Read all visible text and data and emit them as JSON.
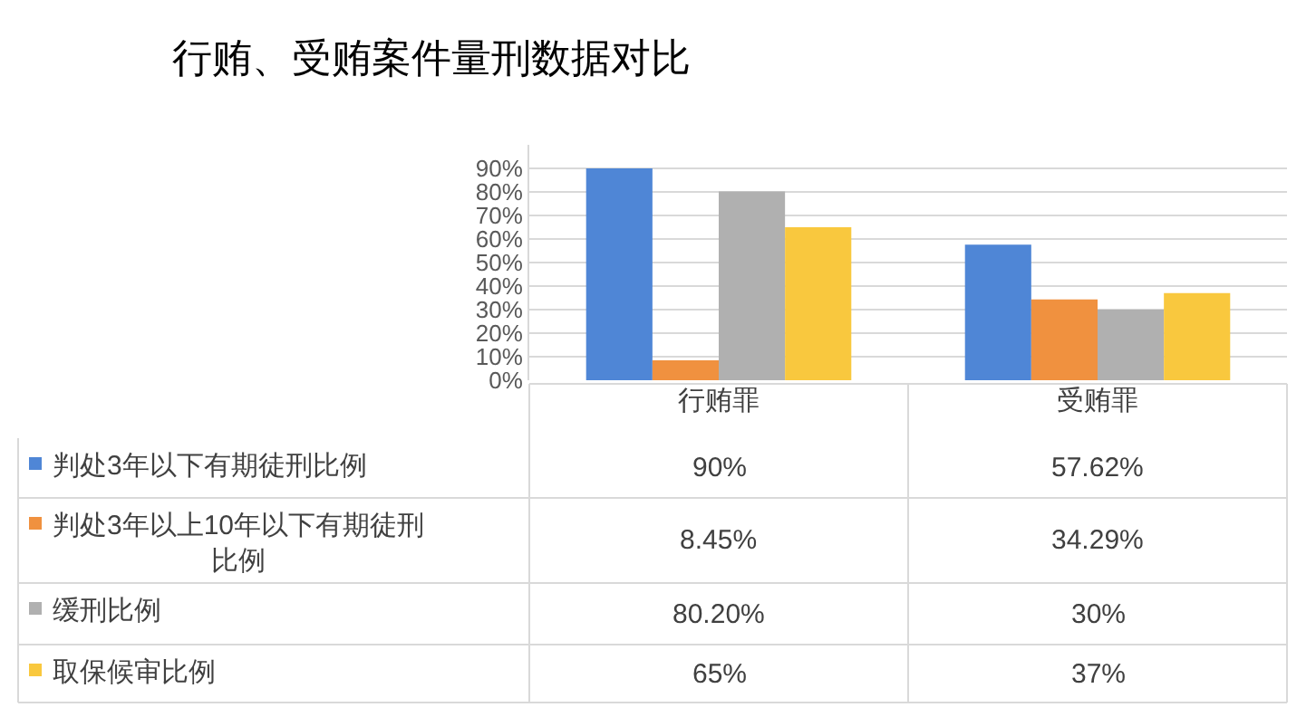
{
  "chart_data": {
    "type": "bar",
    "title": "行贿、受贿案件量刑数据对比",
    "categories": [
      "行贿罪",
      "受贿罪"
    ],
    "series": [
      {
        "name": "判处3年以下有期徒刑比例",
        "color": "#4f86d6",
        "values": [
          90,
          57.62
        ],
        "value_labels": [
          "90%",
          "57.62%"
        ]
      },
      {
        "name": "判处3年以上10年以下有期徒刑比例",
        "color": "#f0913f",
        "values": [
          8.45,
          34.29
        ],
        "value_labels": [
          "8.45%",
          "34.29%"
        ]
      },
      {
        "name": "缓刑比例",
        "color": "#b0b0b0",
        "values": [
          80.2,
          30
        ],
        "value_labels": [
          "80.20%",
          "30%"
        ]
      },
      {
        "name": "取保候审比例",
        "color": "#f9c83e",
        "values": [
          65,
          37
        ],
        "value_labels": [
          "65%",
          "37%"
        ]
      }
    ],
    "ylim": [
      0,
      100
    ],
    "yticks": [
      {
        "value": 0,
        "label": "0%"
      },
      {
        "value": 10,
        "label": "10%"
      },
      {
        "value": 20,
        "label": "20%"
      },
      {
        "value": 30,
        "label": "30%"
      },
      {
        "value": 40,
        "label": "40%"
      },
      {
        "value": 50,
        "label": "50%"
      },
      {
        "value": 60,
        "label": "60%"
      },
      {
        "value": 70,
        "label": "70%"
      },
      {
        "value": 80,
        "label": "80%"
      },
      {
        "value": 90,
        "label": "90%"
      }
    ],
    "grid": "y",
    "legend": "bottom"
  }
}
